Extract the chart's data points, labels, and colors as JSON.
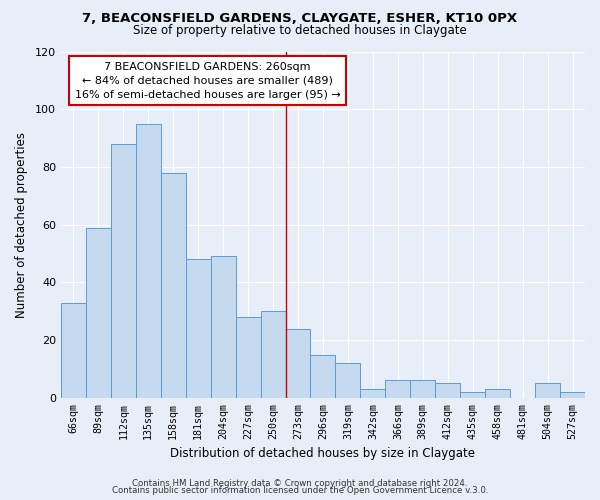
{
  "title": "7, BEACONSFIELD GARDENS, CLAYGATE, ESHER, KT10 0PX",
  "subtitle": "Size of property relative to detached houses in Claygate",
  "xlabel": "Distribution of detached houses by size in Claygate",
  "ylabel": "Number of detached properties",
  "categories": [
    "66sqm",
    "89sqm",
    "112sqm",
    "135sqm",
    "158sqm",
    "181sqm",
    "204sqm",
    "227sqm",
    "250sqm",
    "273sqm",
    "296sqm",
    "319sqm",
    "342sqm",
    "366sqm",
    "389sqm",
    "412sqm",
    "435sqm",
    "458sqm",
    "481sqm",
    "504sqm",
    "527sqm"
  ],
  "values": [
    33,
    59,
    88,
    95,
    78,
    48,
    49,
    28,
    30,
    24,
    15,
    12,
    3,
    6,
    6,
    5,
    2,
    3,
    0,
    5,
    2
  ],
  "bar_color": "#c5d9ef",
  "bar_edge_color": "#5b9bd5",
  "background_color": "#e8eef8",
  "grid_color": "#ffffff",
  "vline_x": 8.5,
  "vline_color": "#cc0000",
  "annotation_line1": "7 BEACONSFIELD GARDENS: 260sqm",
  "annotation_line2": "← 84% of detached houses are smaller (489)",
  "annotation_line3": "16% of semi-detached houses are larger (95) →",
  "annotation_box_edge": "#cc0000",
  "ylim": [
    0,
    120
  ],
  "yticks": [
    0,
    20,
    40,
    60,
    80,
    100,
    120
  ],
  "footer1": "Contains HM Land Registry data © Crown copyright and database right 2024.",
  "footer2": "Contains public sector information licensed under the Open Government Licence v.3.0."
}
